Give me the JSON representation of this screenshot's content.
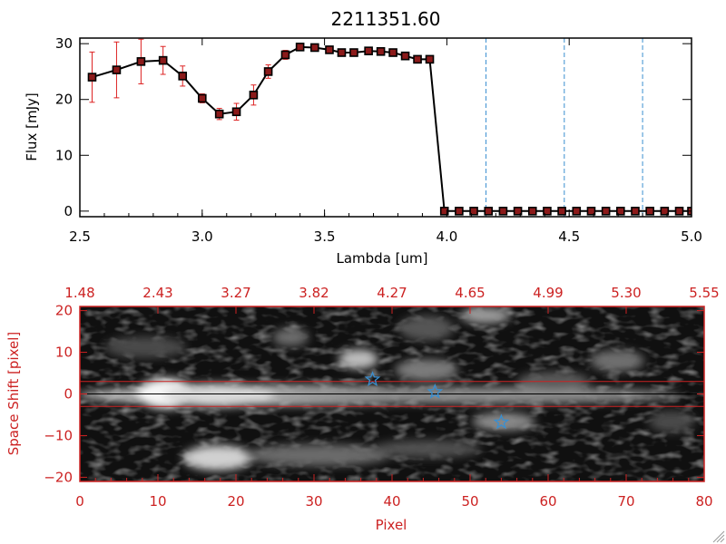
{
  "chart_data": [
    {
      "type": "line",
      "title": "2211351.60",
      "xlabel": "Lambda [um]",
      "ylabel": "Flux [mJy]",
      "xlim": [
        2.5,
        5.0
      ],
      "ylim": [
        -1,
        31
      ],
      "xticks": [
        2.5,
        3.0,
        3.5,
        4.0,
        4.5,
        5.0
      ],
      "xtick_labels": [
        "2.5",
        "3.0",
        "3.5",
        "4.0",
        "4.5",
        "5.0"
      ],
      "yticks": [
        0,
        10,
        20,
        30
      ],
      "ytick_labels": [
        "0",
        "10",
        "20",
        "30"
      ],
      "series": [
        {
          "name": "flux",
          "x": [
            2.55,
            2.65,
            2.75,
            2.84,
            2.92,
            3.0,
            3.07,
            3.14,
            3.21,
            3.27,
            3.34,
            3.4,
            3.46,
            3.52,
            3.57,
            3.62,
            3.68,
            3.73,
            3.78,
            3.83,
            3.88,
            3.93,
            3.99,
            4.05,
            4.11,
            4.17,
            4.23,
            4.29,
            4.35,
            4.41,
            4.47,
            4.53,
            4.59,
            4.65,
            4.71,
            4.77,
            4.83,
            4.89,
            4.95,
            5.0
          ],
          "y": [
            24,
            25.3,
            26.8,
            27.0,
            24.2,
            20.2,
            17.4,
            17.8,
            20.8,
            25.0,
            28.0,
            29.4,
            29.3,
            28.9,
            28.4,
            28.4,
            28.7,
            28.6,
            28.4,
            27.8,
            27.2,
            27.2,
            0,
            0,
            0,
            0,
            0,
            0,
            0,
            0,
            0,
            0,
            0,
            0,
            0,
            0,
            0,
            0,
            0,
            0
          ],
          "yerr": [
            4.5,
            5.0,
            4.0,
            2.5,
            1.8,
            0.8,
            1.0,
            1.5,
            1.8,
            1.2,
            0.8,
            0,
            0,
            0,
            0,
            0,
            0,
            0,
            0,
            0,
            0,
            0,
            0,
            0,
            0,
            0,
            0,
            0,
            0,
            0,
            0,
            0,
            0,
            0,
            0,
            0,
            0,
            0,
            0,
            0
          ]
        }
      ],
      "vlines": [
        4.16,
        4.48,
        4.8
      ],
      "colors": {
        "line": "#000000",
        "marker": "#8b1a1a",
        "errorbar": "#dd2222",
        "vline": "#3a8fd0"
      }
    },
    {
      "type": "heatmap",
      "xlabel": "Pixel",
      "ylabel": "Space Shift [pixel]",
      "xlim": [
        0,
        80
      ],
      "ylim": [
        -21,
        21
      ],
      "xticks": [
        0,
        10,
        20,
        30,
        40,
        50,
        60,
        70,
        80
      ],
      "xtick_labels": [
        "0",
        "10",
        "20",
        "30",
        "40",
        "50",
        "60",
        "70",
        "80"
      ],
      "yticks": [
        -20,
        -10,
        0,
        10,
        20
      ],
      "ytick_labels": [
        "−20",
        "−10",
        "0",
        "10",
        "20"
      ],
      "top_axis_label_values": [
        0,
        10,
        20,
        30,
        40,
        50,
        60,
        70,
        80
      ],
      "top_axis_labels": [
        "1.48",
        "2.43",
        "3.27",
        "3.82",
        "4.27",
        "4.65",
        "4.99",
        "5.30",
        "5.55"
      ],
      "hlines": [
        3,
        0,
        -3
      ],
      "stars": [
        {
          "x": 37.5,
          "y": 3.5
        },
        {
          "x": 45.5,
          "y": 0.5
        },
        {
          "x": 54,
          "y": -6.8
        }
      ],
      "colors": {
        "axis": "#cc2222",
        "star": "#3a8fd0",
        "hline": "#cc2222",
        "centerline": "#000000"
      }
    }
  ]
}
